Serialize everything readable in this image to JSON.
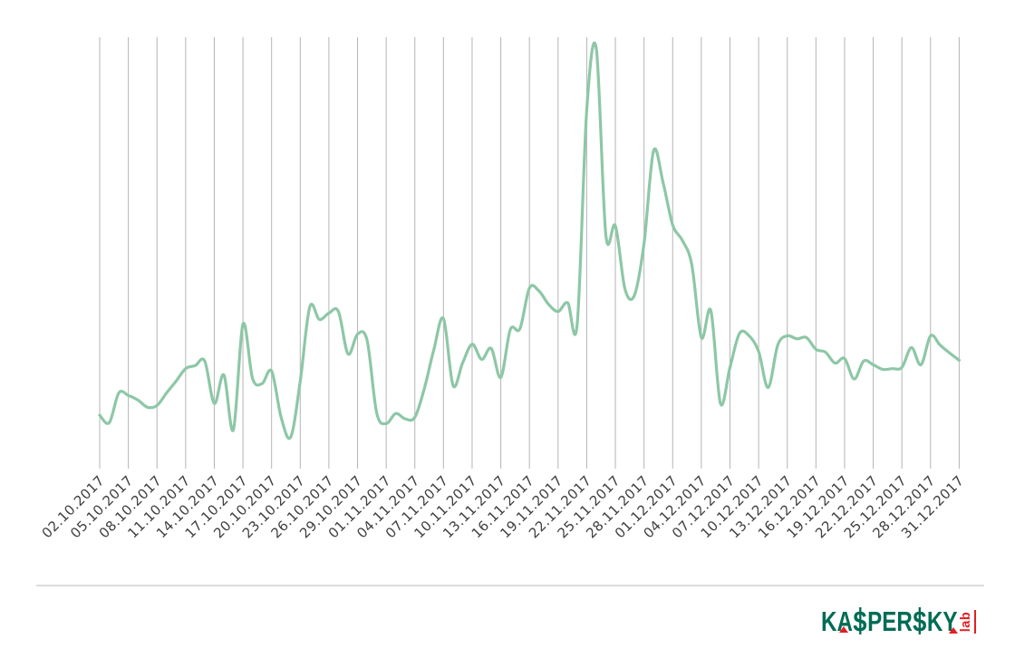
{
  "chart_data": {
    "type": "line",
    "title": "",
    "xlabel": "",
    "ylabel": "",
    "y_axis_shown": false,
    "y_unit": "relative scale 0-100 (chart displays no y-axis labels)",
    "grid": "vertical-only",
    "legend": "none",
    "line_color": "#8dc7a6",
    "gridline_color": "#b5b5b5",
    "tick_label_color": "#3f3f3f",
    "x_tick_interval_days": 3,
    "x_tick_labels": [
      "02.10.2017",
      "05.10.2017",
      "08.10.2017",
      "11.10.2017",
      "14.10.2017",
      "17.10.2017",
      "20.10.2017",
      "23.10.2017",
      "26.10.2017",
      "29.10.2017",
      "01.11.2017",
      "04.11.2017",
      "07.11.2017",
      "10.11.2017",
      "13.11.2017",
      "16.11.2017",
      "19.11.2017",
      "22.11.2017",
      "25.11.2017",
      "28.11.2017",
      "01.12.2017",
      "04.12.2017",
      "07.12.2017",
      "10.12.2017",
      "13.12.2017",
      "16.12.2017",
      "19.12.2017",
      "22.12.2017",
      "25.12.2017",
      "28.12.2017",
      "31.12.2017"
    ],
    "x": [
      "02.10.2017",
      "03.10.2017",
      "04.10.2017",
      "05.10.2017",
      "06.10.2017",
      "07.10.2017",
      "08.10.2017",
      "09.10.2017",
      "10.10.2017",
      "11.10.2017",
      "12.10.2017",
      "13.10.2017",
      "14.10.2017",
      "15.10.2017",
      "16.10.2017",
      "17.10.2017",
      "18.10.2017",
      "19.10.2017",
      "20.10.2017",
      "21.10.2017",
      "22.10.2017",
      "23.10.2017",
      "24.10.2017",
      "25.10.2017",
      "26.10.2017",
      "27.10.2017",
      "28.10.2017",
      "29.10.2017",
      "30.10.2017",
      "31.10.2017",
      "01.11.2017",
      "02.11.2017",
      "03.11.2017",
      "04.11.2017",
      "05.11.2017",
      "06.11.2017",
      "07.11.2017",
      "08.11.2017",
      "09.11.2017",
      "10.11.2017",
      "11.11.2017",
      "12.11.2017",
      "13.11.2017",
      "14.11.2017",
      "15.11.2017",
      "16.11.2017",
      "17.11.2017",
      "18.11.2017",
      "19.11.2017",
      "20.11.2017",
      "21.11.2017",
      "22.11.2017",
      "23.11.2017",
      "24.11.2017",
      "25.11.2017",
      "26.11.2017",
      "27.11.2017",
      "28.11.2017",
      "29.11.2017",
      "30.11.2017",
      "01.12.2017",
      "02.12.2017",
      "03.12.2017",
      "04.12.2017",
      "05.12.2017",
      "06.12.2017",
      "07.12.2017",
      "08.12.2017",
      "09.12.2017",
      "10.12.2017",
      "11.12.2017",
      "12.12.2017",
      "13.12.2017",
      "14.12.2017",
      "15.12.2017",
      "16.12.2017",
      "17.12.2017",
      "18.12.2017",
      "19.12.2017",
      "20.12.2017",
      "21.12.2017",
      "22.12.2017",
      "23.12.2017",
      "24.12.2017",
      "25.12.2017",
      "26.12.2017",
      "27.12.2017",
      "28.12.2017",
      "29.12.2017",
      "30.12.2017",
      "31.12.2017"
    ],
    "values": [
      12.3,
      10.5,
      17.6,
      17.0,
      15.9,
      14.2,
      14.6,
      17.6,
      20.4,
      23.4,
      24.1,
      25.2,
      15.1,
      21.9,
      8.8,
      34.0,
      21.1,
      19.8,
      22.8,
      11.8,
      7.1,
      20.4,
      38.1,
      35.1,
      36.6,
      37.0,
      26.9,
      31.6,
      30.1,
      12.9,
      10.3,
      12.7,
      11.4,
      11.8,
      18.7,
      28.0,
      35.3,
      19.4,
      24.7,
      29.2,
      25.6,
      28.2,
      21.3,
      32.7,
      32.9,
      42.6,
      41.9,
      38.7,
      37.0,
      39.1,
      34.0,
      84.9,
      99.6,
      55.3,
      57.4,
      42.4,
      40.9,
      53.3,
      75.3,
      67.7,
      57.6,
      54.0,
      48.2,
      30.8,
      37.2,
      15.1,
      23.7,
      31.8,
      31.2,
      27.5,
      18.9,
      29.0,
      31.2,
      30.5,
      30.8,
      28.0,
      27.3,
      24.7,
      25.8,
      20.9,
      25.2,
      24.3,
      23.2,
      23.4,
      23.7,
      28.4,
      24.3,
      31.2,
      29.0,
      27.1,
      25.4
    ]
  },
  "footer": {
    "logo": {
      "brand": "Kaspersky Lab",
      "wordmark": "KASPERSKY",
      "wordmark_parts": [
        "KA",
        "S",
        "PER",
        "S",
        "KY"
      ],
      "sub": "lab",
      "green": "#006c55",
      "red": "#e31e24"
    }
  }
}
